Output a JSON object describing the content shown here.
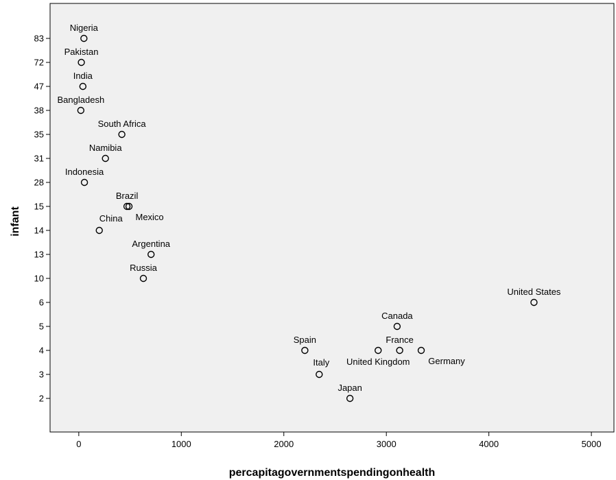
{
  "chart_data": {
    "type": "scatter",
    "xlabel": "percapitagovernmentspendingonhealth",
    "ylabel": "infant",
    "x_ticks": [
      0,
      1000,
      2000,
      3000,
      4000,
      5000
    ],
    "y_categories": [
      "2",
      "3",
      "4",
      "5",
      "6",
      "10",
      "13",
      "14",
      "15",
      "28",
      "31",
      "35",
      "38",
      "47",
      "72",
      "83"
    ],
    "xlim": [
      -280,
      5220
    ],
    "grid": false,
    "colors": {
      "plot_background": "#f0f0f0",
      "marker_edge": "#000000"
    },
    "points": [
      {
        "label": "Nigeria",
        "x": 50,
        "y": 83
      },
      {
        "label": "Pakistan",
        "x": 25,
        "y": 72
      },
      {
        "label": "India",
        "x": 40,
        "y": 47
      },
      {
        "label": "Bangladesh",
        "x": 20,
        "y": 38
      },
      {
        "label": "South Africa",
        "x": 420,
        "y": 35
      },
      {
        "label": "Namibia",
        "x": 260,
        "y": 31
      },
      {
        "label": "Indonesia",
        "x": 55,
        "y": 28
      },
      {
        "label": "Brazil",
        "x": 470,
        "y": 15
      },
      {
        "label": "Mexico",
        "x": 490,
        "y": 15
      },
      {
        "label": "China",
        "x": 200,
        "y": 14
      },
      {
        "label": "Argentina",
        "x": 705,
        "y": 13
      },
      {
        "label": "Russia",
        "x": 630,
        "y": 10
      },
      {
        "label": "United States",
        "x": 4440,
        "y": 6
      },
      {
        "label": "Canada",
        "x": 3105,
        "y": 5
      },
      {
        "label": "Spain",
        "x": 2205,
        "y": 4
      },
      {
        "label": "United Kingdom",
        "x": 2920,
        "y": 4
      },
      {
        "label": "France",
        "x": 3130,
        "y": 4
      },
      {
        "label": "Germany",
        "x": 3340,
        "y": 4
      },
      {
        "label": "Italy",
        "x": 2345,
        "y": 3
      },
      {
        "label": "Japan",
        "x": 2645,
        "y": 2
      }
    ]
  }
}
